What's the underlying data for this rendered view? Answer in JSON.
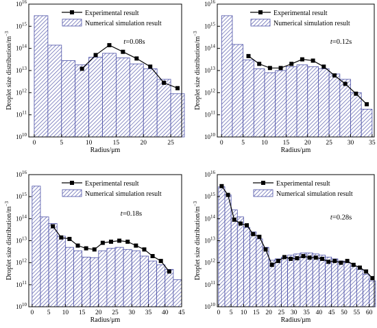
{
  "colors": {
    "bar_stroke": "#4a4fa6",
    "bar_fill": "#ffffff",
    "hatch": "#4a4fa6",
    "line": "#000000",
    "marker": "#000000",
    "axis": "#000000"
  },
  "chart_data": [
    {
      "type": "bar",
      "annotation": "t=0.08s",
      "xlabel": "Radius/μm",
      "ylabel": "Droplet size distribution/m⁻³",
      "yscale": "log",
      "xlim": [
        -1,
        27
      ],
      "ylim": [
        10000000000.0,
        1e+16
      ],
      "xticks": [
        0,
        5,
        10,
        15,
        20,
        25
      ],
      "bar_width": 2.5,
      "legend": {
        "line": "Experimental result",
        "bar": "Numerical simulation result"
      },
      "series": [
        {
          "name": "Numerical simulation result",
          "kind": "bar",
          "x": [
            1.25,
            3.75,
            6.25,
            8.75,
            11.25,
            13.75,
            16.25,
            18.75,
            21.25,
            23.75,
            26.25
          ],
          "values": [
            3000000000000000.0,
            140000000000000.0,
            28000000000000.0,
            18000000000000.0,
            40000000000000.0,
            60000000000000.0,
            37000000000000.0,
            20000000000000.0,
            12000000000000.0,
            4000000000000.0,
            900000000000.0
          ]
        },
        {
          "name": "Experimental result",
          "kind": "line",
          "x": [
            8.75,
            11.25,
            13.75,
            16.25,
            18.75,
            21.25,
            23.75,
            26.25
          ],
          "values": [
            12000000000000.0,
            50000000000000.0,
            140000000000000.0,
            70000000000000.0,
            35000000000000.0,
            15000000000000.0,
            2800000000000.0,
            1600000000000.0
          ]
        }
      ]
    },
    {
      "type": "bar",
      "annotation": "t=0.12s",
      "xlabel": "Radius/μm",
      "ylabel": "Droplet size distribution/m⁻³",
      "yscale": "log",
      "xlim": [
        -1,
        35.5
      ],
      "ylim": [
        10000000000.0,
        1e+16
      ],
      "xticks": [
        0,
        5,
        10,
        15,
        20,
        25,
        30,
        35
      ],
      "bar_width": 2.5,
      "legend": {
        "line": "Experimental result",
        "bar": "Numerical simulation result"
      },
      "series": [
        {
          "name": "Numerical simulation result",
          "kind": "bar",
          "x": [
            1.25,
            3.75,
            6.25,
            8.75,
            11.25,
            13.75,
            16.25,
            18.75,
            21.25,
            23.75,
            26.25,
            28.75,
            31.25,
            33.75
          ],
          "values": [
            3000000000000000.0,
            150000000000000.0,
            30000000000000.0,
            12000000000000.0,
            8000000000000.0,
            10000000000000.0,
            15000000000000.0,
            18000000000000.0,
            15000000000000.0,
            12000000000000.0,
            7000000000000.0,
            4000000000000.0,
            1000000000000.0,
            180000000000.0
          ]
        },
        {
          "name": "Experimental result",
          "kind": "line",
          "x": [
            6.25,
            8.75,
            11.25,
            13.75,
            16.25,
            18.75,
            21.25,
            23.75,
            26.25,
            28.75,
            31.25,
            33.75
          ],
          "values": [
            45000000000000.0,
            20000000000000.0,
            13000000000000.0,
            13000000000000.0,
            20000000000000.0,
            32000000000000.0,
            28000000000000.0,
            15000000000000.0,
            6000000000000.0,
            2500000000000.0,
            900000000000.0,
            300000000000.0
          ]
        }
      ]
    },
    {
      "type": "bar",
      "annotation": "t=0.18s",
      "xlabel": "Radius/μm",
      "ylabel": "Droplet size distribution/m⁻³",
      "yscale": "log",
      "xlim": [
        -1,
        45
      ],
      "ylim": [
        10000000000.0,
        1e+16
      ],
      "xticks": [
        0,
        5,
        10,
        15,
        20,
        25,
        30,
        35,
        40,
        45
      ],
      "bar_width": 2.5,
      "legend": {
        "line": "Experimental result",
        "bar": "Numerical simulation result"
      },
      "series": [
        {
          "name": "Numerical simulation result",
          "kind": "bar",
          "x": [
            1.25,
            3.75,
            6.25,
            8.75,
            11.25,
            13.75,
            16.25,
            18.75,
            21.25,
            23.75,
            26.25,
            28.75,
            31.25,
            33.75,
            36.25,
            38.75,
            41.25,
            43.75
          ],
          "values": [
            3000000000000000.0,
            120000000000000.0,
            60000000000000.0,
            16000000000000.0,
            5000000000000.0,
            3500000000000.0,
            1800000000000.0,
            1700000000000.0,
            3500000000000.0,
            4500000000000.0,
            5000000000000.0,
            4000000000000.0,
            3500000000000.0,
            2000000000000.0,
            1200000000000.0,
            800000000000.0,
            500000000000.0,
            170000000000.0
          ]
        },
        {
          "name": "Experimental result",
          "kind": "line",
          "x": [
            6.25,
            8.75,
            11.25,
            13.75,
            16.25,
            18.75,
            21.25,
            23.75,
            26.25,
            28.75,
            31.25,
            33.75,
            36.25,
            38.75,
            41.25
          ],
          "values": [
            45000000000000.0,
            14000000000000.0,
            12000000000000.0,
            6000000000000.0,
            4500000000000.0,
            4000000000000.0,
            8000000000000.0,
            9000000000000.0,
            10000000000000.0,
            9000000000000.0,
            6000000000000.0,
            4000000000000.0,
            2000000000000.0,
            1200000000000.0,
            400000000000.0
          ]
        }
      ]
    },
    {
      "type": "bar",
      "annotation": "t=0.28s",
      "xlabel": "Radius/μm",
      "ylabel": "Droplet size distribution/m⁻³",
      "yscale": "log",
      "xlim": [
        -0.5,
        62
      ],
      "ylim": [
        10000000000.0,
        1e+16
      ],
      "xticks": [
        0,
        5,
        10,
        15,
        20,
        25,
        30,
        35,
        40,
        45,
        50,
        55,
        60
      ],
      "bar_width": 2.5,
      "legend": {
        "line": "Experimental result",
        "bar": "Numerical simulation result"
      },
      "series": [
        {
          "name": "Numerical simulation result",
          "kind": "bar",
          "x": [
            1.25,
            3.75,
            6.25,
            8.75,
            11.25,
            13.75,
            16.25,
            18.75,
            21.25,
            23.75,
            26.25,
            28.75,
            31.25,
            33.75,
            36.25,
            38.75,
            41.25,
            43.75,
            46.25,
            48.75,
            51.25,
            53.75,
            56.25,
            58.75,
            61.25
          ],
          "values": [
            2800000000000000.0,
            1200000000000000.0,
            250000000000000.0,
            120000000000000.0,
            40000000000000.0,
            25000000000000.0,
            12000000000000.0,
            5000000000000.0,
            1300000000000.0,
            1500000000000.0,
            1800000000000.0,
            2200000000000.0,
            2500000000000.0,
            2800000000000.0,
            2800000000000.0,
            2500000000000.0,
            2200000000000.0,
            1800000000000.0,
            1500000000000.0,
            1200000000000.0,
            1000000000000.0,
            700000000000.0,
            500000000000.0,
            300000000000.0,
            150000000000.0
          ]
        },
        {
          "name": "Experimental result",
          "kind": "line",
          "x": [
            1.25,
            3.75,
            6.25,
            8.75,
            11.25,
            13.75,
            16.25,
            18.75,
            21.25,
            23.75,
            26.25,
            28.75,
            31.25,
            33.75,
            36.25,
            38.75,
            41.25,
            43.75,
            46.25,
            48.75,
            51.25,
            53.75,
            56.25,
            58.75,
            61.25
          ],
          "values": [
            3000000000000000.0,
            1200000000000000.0,
            90000000000000.0,
            60000000000000.0,
            50000000000000.0,
            20000000000000.0,
            15000000000000.0,
            4000000000000.0,
            800000000000.0,
            1200000000000.0,
            1800000000000.0,
            1500000000000.0,
            1600000000000.0,
            2000000000000.0,
            1700000000000.0,
            1700000000000.0,
            1500000000000.0,
            1100000000000.0,
            1200000000000.0,
            1000000000000.0,
            1200000000000.0,
            800000000000.0,
            600000000000.0,
            400000000000.0,
            200000000000.0
          ]
        }
      ]
    }
  ]
}
